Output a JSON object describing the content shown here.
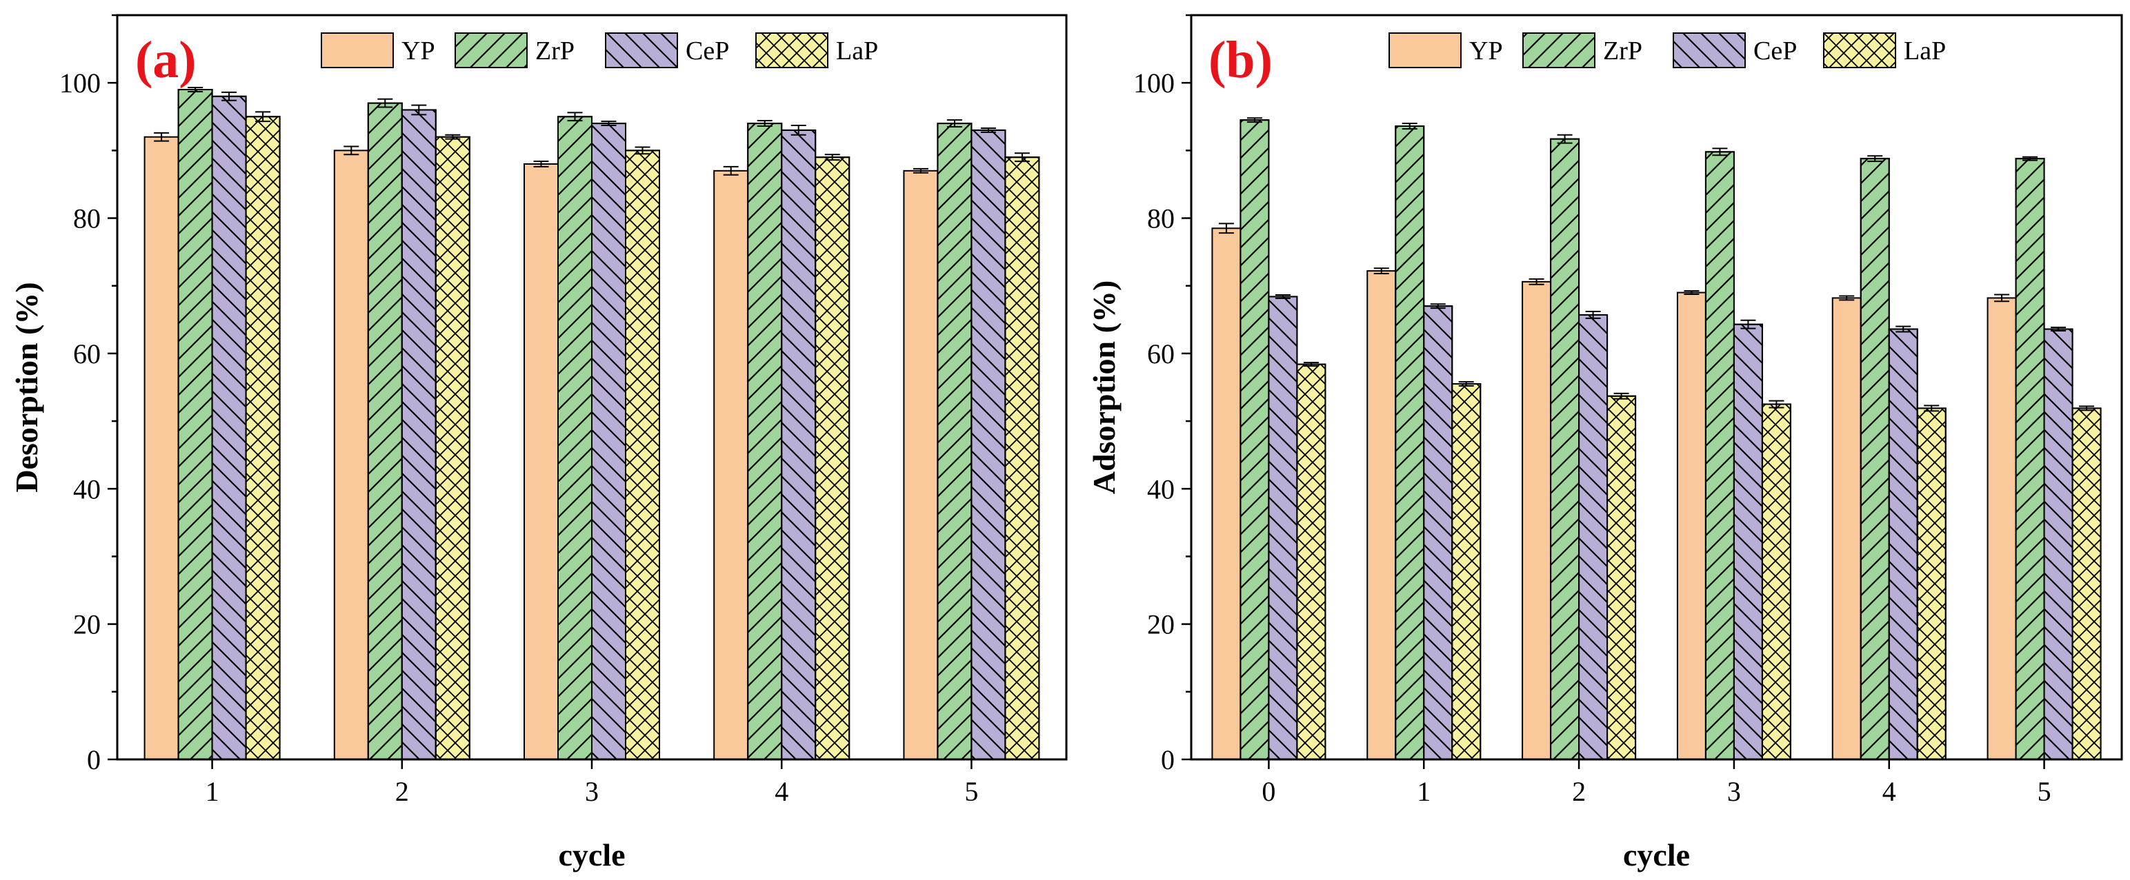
{
  "series_styles": [
    {
      "name": "YP",
      "color": "#f9c89b",
      "pattern": "none"
    },
    {
      "name": "ZrP",
      "color": "#9fd59a",
      "pattern": "diag-up"
    },
    {
      "name": "CeP",
      "color": "#b9afd6",
      "pattern": "diag-down"
    },
    {
      "name": "LaP",
      "color": "#f6f2a2",
      "pattern": "crosshatch"
    }
  ],
  "chart_data": [
    {
      "type": "bar",
      "panel_label": "(a)",
      "title": "",
      "xlabel": "cycle",
      "ylabel": "Desorption (%)",
      "ylim": [
        0,
        110
      ],
      "yticks": [
        0,
        20,
        40,
        60,
        80,
        100
      ],
      "categories": [
        "1",
        "2",
        "3",
        "4",
        "5"
      ],
      "legend_position": "top-center",
      "series": [
        {
          "name": "YP",
          "values": [
            92,
            90,
            88,
            87,
            87
          ],
          "errors": [
            0.6,
            0.6,
            0.4,
            0.6,
            0.3
          ]
        },
        {
          "name": "ZrP",
          "values": [
            99,
            97,
            95,
            94,
            94
          ],
          "errors": [
            0.3,
            0.6,
            0.6,
            0.4,
            0.5
          ]
        },
        {
          "name": "CeP",
          "values": [
            98,
            96,
            94,
            93,
            93
          ],
          "errors": [
            0.6,
            0.7,
            0.3,
            0.7,
            0.3
          ]
        },
        {
          "name": "LaP",
          "values": [
            95,
            92,
            90,
            89,
            89
          ],
          "errors": [
            0.7,
            0.3,
            0.5,
            0.4,
            0.6
          ]
        }
      ]
    },
    {
      "type": "bar",
      "panel_label": "(b)",
      "title": "",
      "xlabel": "cycle",
      "ylabel": "Adsorption (%)",
      "ylim": [
        0,
        110
      ],
      "yticks": [
        0,
        20,
        40,
        60,
        80,
        100
      ],
      "categories": [
        "0",
        "1",
        "2",
        "3",
        "4",
        "5"
      ],
      "legend_position": "top-center",
      "series": [
        {
          "name": "YP",
          "values": [
            78.5,
            72.2,
            70.6,
            69.0,
            68.2,
            68.2
          ],
          "errors": [
            0.7,
            0.4,
            0.4,
            0.2,
            0.3,
            0.5
          ]
        },
        {
          "name": "ZrP",
          "values": [
            94.5,
            93.6,
            91.7,
            89.8,
            88.8,
            88.8
          ],
          "errors": [
            0.3,
            0.4,
            0.6,
            0.5,
            0.4,
            0.2
          ]
        },
        {
          "name": "CeP",
          "values": [
            68.4,
            67.0,
            65.7,
            64.3,
            63.6,
            63.6
          ],
          "errors": [
            0.2,
            0.3,
            0.5,
            0.6,
            0.4,
            0.2
          ]
        },
        {
          "name": "LaP",
          "values": [
            58.4,
            55.5,
            53.7,
            52.5,
            51.9,
            51.9
          ],
          "errors": [
            0.2,
            0.3,
            0.4,
            0.5,
            0.4,
            0.3
          ]
        }
      ]
    }
  ]
}
